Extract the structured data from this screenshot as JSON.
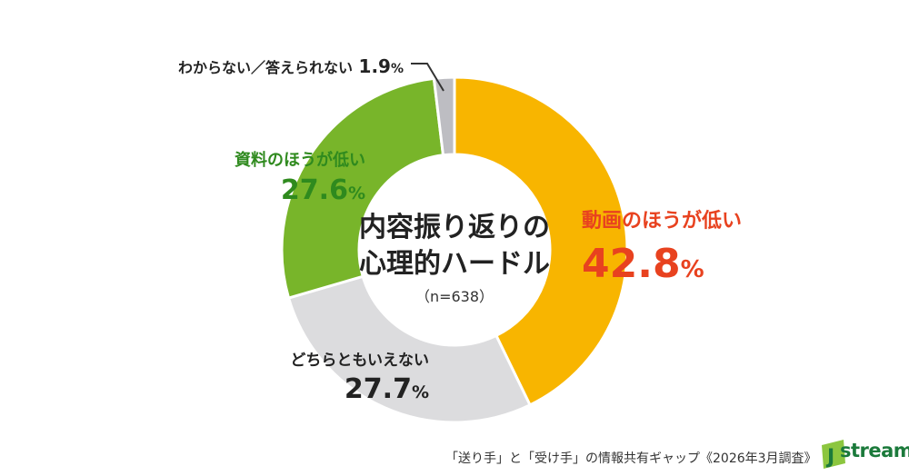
{
  "chart_data": {
    "type": "pie",
    "title": "内容振り返りの心理的ハードル",
    "sample_size": "（n=638）",
    "slices": [
      {
        "label": "動画のほうが低い",
        "value": 42.8,
        "value_text": "42.8",
        "unit": "%",
        "color": "#f8b500",
        "label_color": "#e8421f"
      },
      {
        "label": "どちらともいえない",
        "value": 27.7,
        "value_text": "27.7",
        "unit": "%",
        "color": "#dcdcde",
        "label_color": "#222222"
      },
      {
        "label": "資料のほうが低い",
        "value": 27.6,
        "value_text": "27.6",
        "unit": "%",
        "color": "#78b52a",
        "label_color": "#2f8a1e"
      },
      {
        "label": "わからない／答えられない",
        "value": 1.9,
        "value_text": "1.9",
        "unit": "%",
        "color": "#bdbdc2",
        "label_color": "#222222"
      }
    ]
  },
  "footer": {
    "source": "「送り手」と「受け手」の情報共有ギャップ《2026年3月調査》"
  },
  "logo": {
    "text": "stream",
    "colors": {
      "primary": "#1b7a3b",
      "accent": "#8cc63f"
    }
  }
}
